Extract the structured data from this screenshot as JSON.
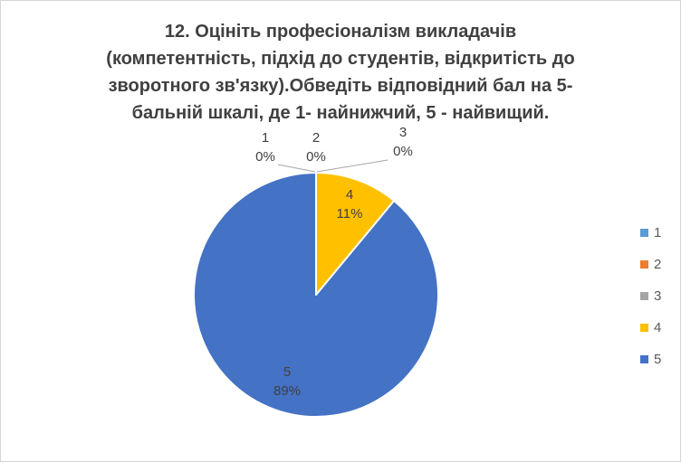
{
  "chart": {
    "title_lines": [
      "12. Оцініть професіоналізм викладачів",
      "(компетентність, підхід до студентів, відкритість до",
      "зворотного зв'язку).Обведіть відповідний бал на 5-",
      "бальній шкалі, де 1- найнижчий, 5 - найвищий."
    ]
  },
  "chart_data": {
    "type": "pie",
    "title": "12. Оцініть професіоналізм викладачів (компетентність, підхід до студентів, відкритість до зворотного зв'язку).Обведіть відповідний бал на 5-бальній шкалі, де 1- найнижчий, 5 - найвищий.",
    "categories": [
      "1",
      "2",
      "3",
      "4",
      "5"
    ],
    "values": [
      0,
      0,
      0,
      11,
      89
    ],
    "value_unit": "percent",
    "colors": [
      "#5B9BD5",
      "#ED7D31",
      "#A5A5A5",
      "#FFC000",
      "#4472C4"
    ],
    "start_angle_deg": 0,
    "direction": "clockwise",
    "legend_position": "right",
    "labels": [
      {
        "cat": "1",
        "pct": "0%",
        "placement": "outside-top"
      },
      {
        "cat": "2",
        "pct": "0%",
        "placement": "outside-top"
      },
      {
        "cat": "3",
        "pct": "0%",
        "placement": "outside-top"
      },
      {
        "cat": "4",
        "pct": "11%",
        "placement": "inside"
      },
      {
        "cat": "5",
        "pct": "89%",
        "placement": "inside"
      }
    ]
  },
  "legend": {
    "items": [
      {
        "label": "1",
        "color": "#5B9BD5"
      },
      {
        "label": "2",
        "color": "#ED7D31"
      },
      {
        "label": "3",
        "color": "#A5A5A5"
      },
      {
        "label": "4",
        "color": "#FFC000"
      },
      {
        "label": "5",
        "color": "#4472C4"
      }
    ]
  },
  "style": {
    "slice_border_color": "#FFFFFF",
    "leader_line_color": "#A6A6A6",
    "text_color": "#404040",
    "legend_text_color": "#595959",
    "frame_border_color": "#D6D6D6",
    "background": "#FFFFFF"
  }
}
